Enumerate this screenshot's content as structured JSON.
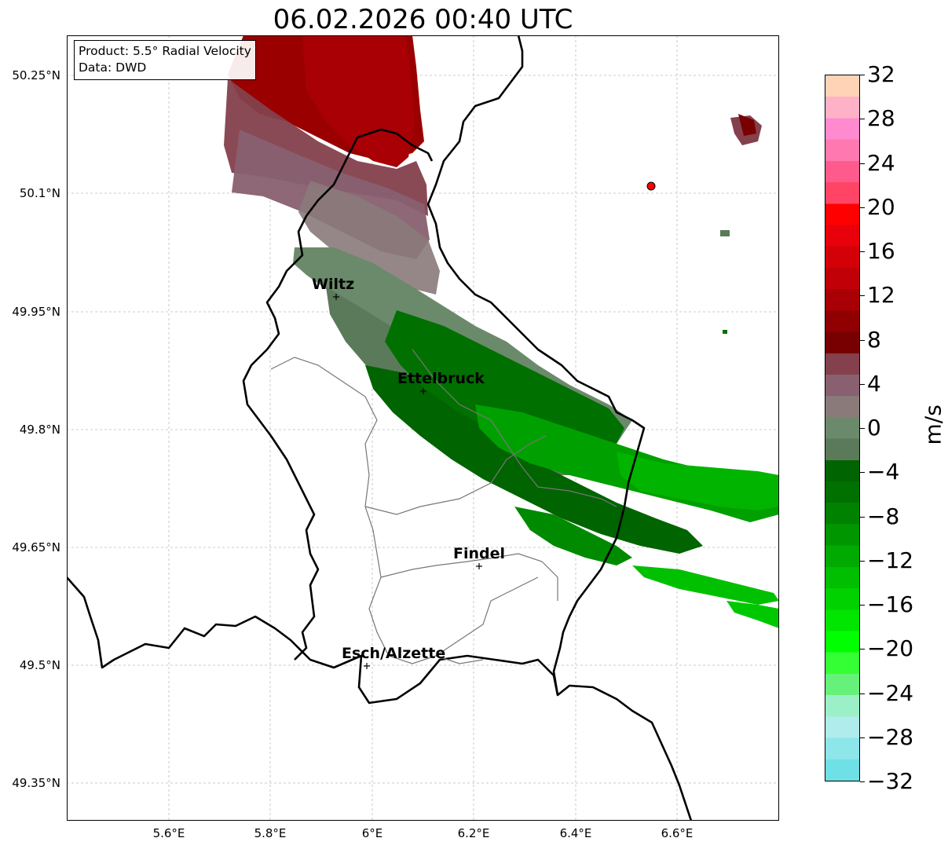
{
  "title": "06.02.2026 00:40 UTC",
  "info_box": {
    "product": "Product: 5.5° Radial Velocity",
    "data_source": "Data: DWD"
  },
  "lat_ticks": [
    "50.25°N",
    "50.1°N",
    "49.95°N",
    "49.8°N",
    "49.65°N",
    "49.5°N",
    "49.35°N"
  ],
  "lon_ticks": [
    "5.6°E",
    "5.8°E",
    "6°E",
    "6.2°E",
    "6.4°E",
    "6.6°E"
  ],
  "cities": [
    {
      "name": "Wiltz"
    },
    {
      "name": "Ettelbruck"
    },
    {
      "name": "Findel"
    },
    {
      "name": "Esch/Alzette"
    }
  ],
  "radar_site_marker_color": "#ff0000",
  "colorbar": {
    "unit": "m/s",
    "min": -32,
    "max": 32,
    "tick_labels": [
      "32",
      "28",
      "24",
      "20",
      "16",
      "12",
      "8",
      "4",
      "0",
      "−4",
      "−8",
      "−12",
      "−16",
      "−20",
      "−24",
      "−28",
      "−32"
    ],
    "colors_top_to_bottom": [
      "#ffd3b6",
      "#ffb1c8",
      "#ff8ad0",
      "#ff78b0",
      "#ff5a8c",
      "#ff4466",
      "#ff0000",
      "#e8000a",
      "#d40008",
      "#c00006",
      "#a80004",
      "#900002",
      "#780000",
      "#84404c",
      "#886070",
      "#8a7a7a",
      "#6b8a6b",
      "#5a7a5a",
      "#006400",
      "#007000",
      "#008200",
      "#009600",
      "#00aa00",
      "#00be00",
      "#00d200",
      "#00e600",
      "#00ff00",
      "#34ff34",
      "#66f27a",
      "#9cf0c8",
      "#b0ecec",
      "#8ce6ea",
      "#6ee0e6"
    ]
  }
}
